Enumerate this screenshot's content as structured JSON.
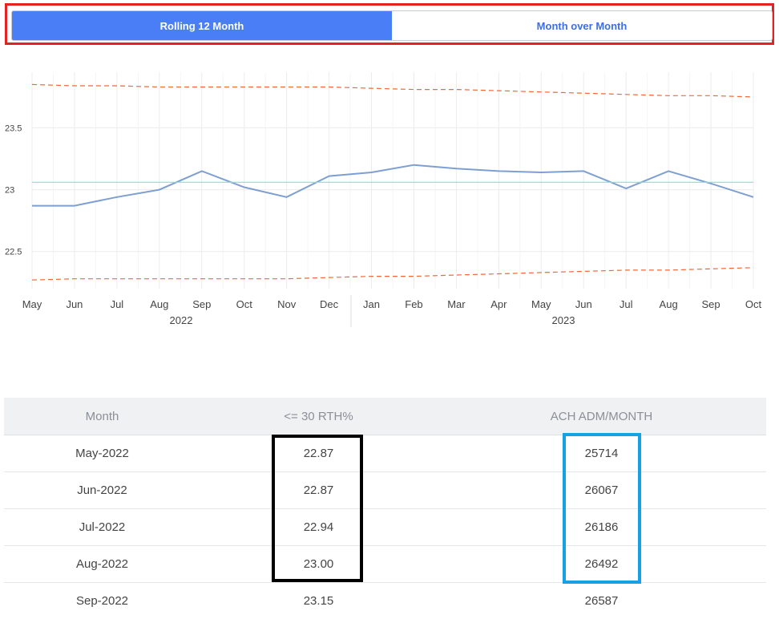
{
  "toggle": {
    "options": [
      {
        "label": "Rolling 12 Month",
        "active": true
      },
      {
        "label": "Month over Month",
        "active": false
      }
    ]
  },
  "chart_data": {
    "type": "line",
    "x": [
      "2022-05",
      "2022-06",
      "2022-07",
      "2022-08",
      "2022-09",
      "2022-10",
      "2022-11",
      "2022-12",
      "2023-01",
      "2023-02",
      "2023-03",
      "2023-04",
      "2023-05",
      "2023-06",
      "2023-07",
      "2023-08",
      "2023-09",
      "2023-10"
    ],
    "month_ticks": [
      "May",
      "Jun",
      "Jul",
      "Aug",
      "Sep",
      "Oct",
      "Nov",
      "Dec",
      "Jan",
      "Feb",
      "Mar",
      "Apr",
      "May",
      "Jun",
      "Jul",
      "Aug",
      "Sep",
      "Oct"
    ],
    "year_ticks": [
      "2022",
      "2023"
    ],
    "y_ticks": [
      "22.5",
      "23",
      "23.5"
    ],
    "ylim": [
      22.2,
      23.95
    ],
    "series": [
      {
        "values": [
          22.87,
          22.87,
          22.94,
          23.0,
          23.15,
          23.02,
          22.94,
          23.11,
          23.14,
          23.2,
          23.17,
          23.15,
          23.14,
          23.15,
          23.01,
          23.15,
          23.05,
          22.94
        ],
        "color": "#7e9fd1"
      },
      {
        "values": [
          23.06,
          23.06,
          23.06,
          23.06,
          23.06,
          23.06,
          23.06,
          23.06,
          23.06,
          23.06,
          23.06,
          23.06,
          23.06,
          23.06,
          23.06,
          23.06,
          23.06,
          23.06
        ],
        "color": "#7fe3cf"
      },
      {
        "values": [
          23.85,
          23.84,
          23.84,
          23.83,
          23.83,
          23.83,
          23.83,
          23.83,
          23.82,
          23.81,
          23.81,
          23.8,
          23.79,
          23.78,
          23.77,
          23.76,
          23.76,
          23.75
        ],
        "color": "#ee6a3a",
        "dashed": true
      },
      {
        "values": [
          22.27,
          22.28,
          22.28,
          22.28,
          22.28,
          22.28,
          22.28,
          22.29,
          22.3,
          22.3,
          22.31,
          22.32,
          22.33,
          22.34,
          22.35,
          22.35,
          22.36,
          22.37
        ],
        "color": "#ee6a3a",
        "dashed": true
      }
    ],
    "grid": true
  },
  "table": {
    "headers": [
      "Month",
      "<= 30 RTH%",
      "ACH ADM/MONTH"
    ],
    "rows": [
      [
        "May-2022",
        "22.87",
        "25714"
      ],
      [
        "Jun-2022",
        "22.87",
        "26067"
      ],
      [
        "Jul-2022",
        "22.94",
        "26186"
      ],
      [
        "Aug-2022",
        "23.00",
        "26492"
      ],
      [
        "Sep-2022",
        "23.15",
        "26587"
      ]
    ]
  }
}
